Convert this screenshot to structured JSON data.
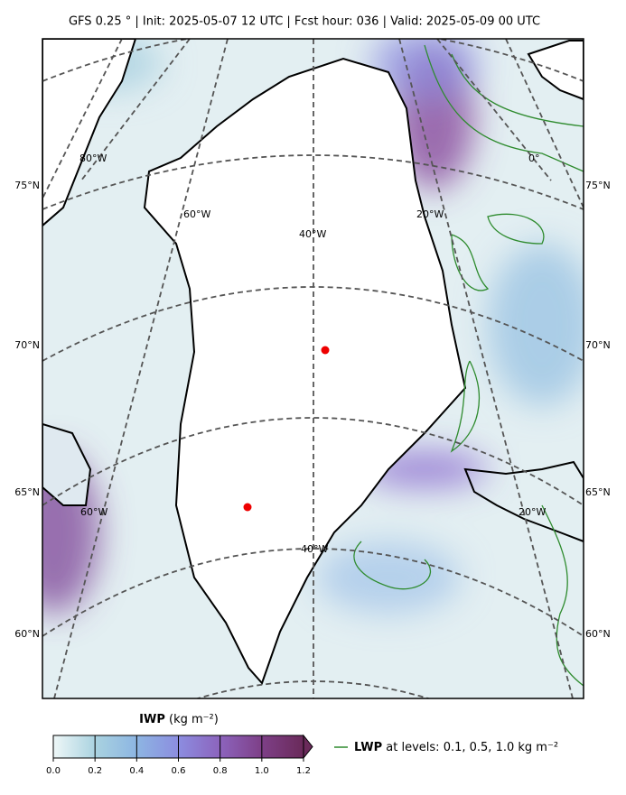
{
  "title": "GFS 0.25 °  |  Init: 2025-05-07 12 UTC  |  Fcst hour: 036  |  Valid: 2025-05-09 00 UTC",
  "map": {
    "lat_labels": [
      "75°N",
      "70°N",
      "65°N",
      "60°N"
    ],
    "lon_labels": [
      "80°W",
      "60°W",
      "40°W",
      "20°W",
      "0°",
      "60°W",
      "40°W",
      "20°W"
    ]
  },
  "colorbar": {
    "label_bold": "IWP",
    "label_unit": "(kg m⁻²)",
    "ticks": [
      {
        "value": 0,
        "label": "0.0"
      },
      {
        "value": 0.2,
        "label": "0.2"
      },
      {
        "value": 0.4,
        "label": "0.4"
      },
      {
        "value": 0.6,
        "label": "0.6"
      },
      {
        "value": 0.8,
        "label": "0.8"
      },
      {
        "value": 1,
        "label": "1.0"
      },
      {
        "value": 1.2,
        "label": "1.2"
      }
    ],
    "lim": [
      0,
      1.2
    ]
  },
  "legend": {
    "bold": "LWP",
    "text": "at levels: 0.1, 0.5, 1.0  kg m⁻²",
    "color": "#2e8b2e"
  }
}
